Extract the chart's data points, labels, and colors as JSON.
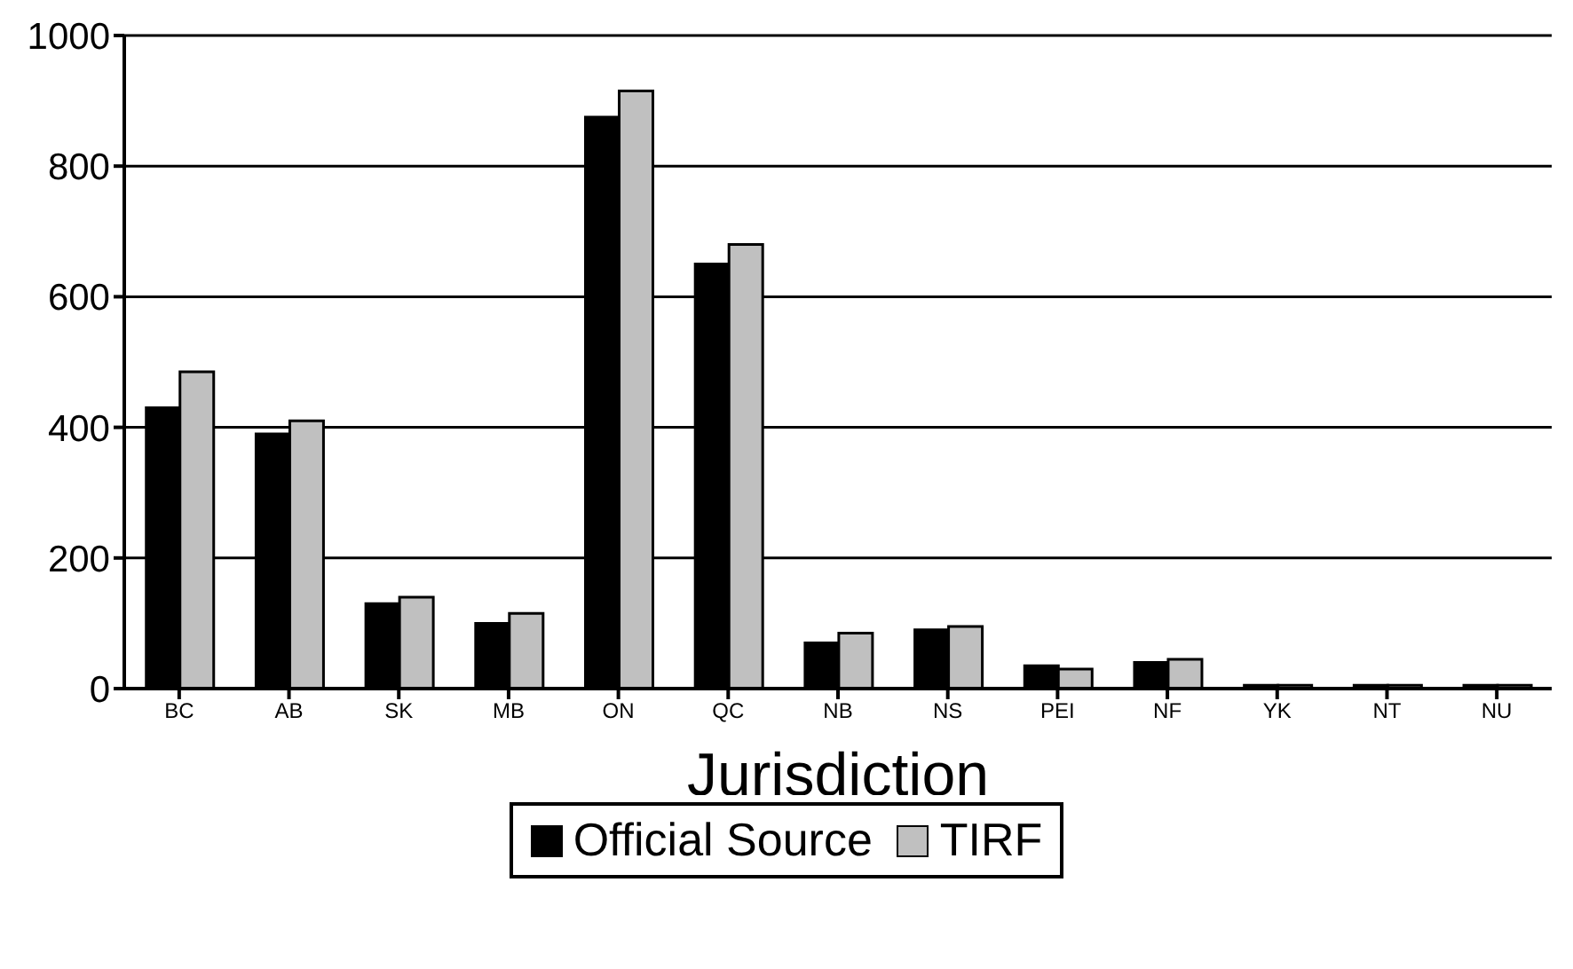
{
  "chart_data": {
    "type": "bar",
    "xlabel": "Jurisdiction",
    "categories": [
      "BC",
      "AB",
      "SK",
      "MB",
      "ON",
      "QC",
      "NB",
      "NS",
      "PEI",
      "NF",
      "YK",
      "NT",
      "NU"
    ],
    "series": [
      {
        "name": "Official Source",
        "color": "#000000",
        "values": [
          430,
          390,
          130,
          100,
          875,
          650,
          70,
          90,
          35,
          40,
          5,
          5,
          5
        ]
      },
      {
        "name": "TIRF",
        "color": "#c0c0c0",
        "values": [
          485,
          410,
          140,
          115,
          915,
          680,
          85,
          95,
          30,
          45,
          5,
          5,
          5
        ]
      }
    ],
    "ylim": [
      0,
      1000
    ],
    "yticks": [
      0,
      200,
      400,
      600,
      800,
      1000
    ],
    "grid": "y",
    "legend": "bottom"
  }
}
